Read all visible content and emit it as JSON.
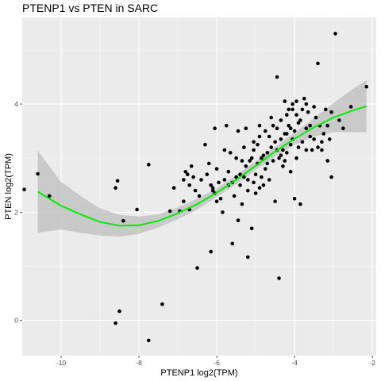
{
  "chart_data": {
    "type": "scatter",
    "title": "PTENP1 vs  PTEN in SARC",
    "xlabel": "PTENP1 log2(TPM)",
    "ylabel": "PTEN log2(TPM)",
    "xlim": [
      -11.0,
      -1.9
    ],
    "ylim": [
      -0.65,
      5.6
    ],
    "xticks": [
      -10,
      -8,
      -6,
      -4,
      -2
    ],
    "yticks": [
      0,
      2,
      4
    ],
    "grid": true,
    "background": "#ebebeb",
    "point_color": "#000000",
    "fit_color": "#00ee00",
    "band_color": "#bebebe",
    "points": [
      [
        -10.95,
        2.42
      ],
      [
        -10.6,
        2.71
      ],
      [
        -10.3,
        2.3
      ],
      [
        -8.6,
        2.45
      ],
      [
        -8.55,
        2.58
      ],
      [
        -8.4,
        1.84
      ],
      [
        -8.05,
        2.05
      ],
      [
        -7.75,
        2.88
      ],
      [
        -8.6,
        -0.05
      ],
      [
        -8.5,
        0.17
      ],
      [
        -7.75,
        -0.37
      ],
      [
        -7.4,
        0.3
      ],
      [
        -7.2,
        2.02
      ],
      [
        -7.1,
        2.45
      ],
      [
        -6.95,
        2.02
      ],
      [
        -6.85,
        2.6
      ],
      [
        -6.8,
        2.75
      ],
      [
        -6.75,
        2.7
      ],
      [
        -6.7,
        2.5
      ],
      [
        -6.65,
        2.85
      ],
      [
        -6.6,
        2.65
      ],
      [
        -6.5,
        0.97
      ],
      [
        -6.45,
        2.3
      ],
      [
        -6.3,
        3.25
      ],
      [
        -6.2,
        2.9
      ],
      [
        -6.15,
        2.5
      ],
      [
        -6.1,
        2.45
      ],
      [
        -6.1,
        2.4
      ],
      [
        -6.05,
        3.55
      ],
      [
        -6.0,
        2.8
      ],
      [
        -6.05,
        2.35
      ],
      [
        -5.9,
        2.25
      ],
      [
        -5.85,
        2.0
      ],
      [
        -5.8,
        3.15
      ],
      [
        -5.75,
        3.6
      ],
      [
        -5.7,
        2.5
      ],
      [
        -5.6,
        2.55
      ],
      [
        -5.55,
        2.3
      ],
      [
        -5.5,
        2.65
      ],
      [
        -5.45,
        3.5
      ],
      [
        -5.4,
        2.7
      ],
      [
        -5.35,
        2.95
      ],
      [
        -5.3,
        3.2
      ],
      [
        -5.25,
        2.85
      ],
      [
        -5.2,
        2.6
      ],
      [
        -5.2,
        2.4
      ],
      [
        -5.1,
        3.0
      ],
      [
        -5.05,
        2.55
      ],
      [
        -5.0,
        2.7
      ],
      [
        -4.95,
        3.25
      ],
      [
        -4.9,
        3.4
      ],
      [
        -4.85,
        3.0
      ],
      [
        -4.8,
        2.5
      ],
      [
        -4.75,
        2.8
      ],
      [
        -4.7,
        3.1
      ],
      [
        -4.65,
        3.4
      ],
      [
        -4.6,
        3.2
      ],
      [
        -4.55,
        2.95
      ],
      [
        -4.5,
        3.3
      ],
      [
        -4.45,
        3.55
      ],
      [
        -4.4,
        3.0
      ],
      [
        -4.35,
        3.7
      ],
      [
        -4.3,
        3.15
      ],
      [
        -4.25,
        3.45
      ],
      [
        -4.2,
        3.8
      ],
      [
        -4.15,
        3.6
      ],
      [
        -4.1,
        3.25
      ],
      [
        -4.05,
        3.9
      ],
      [
        -4.0,
        3.5
      ],
      [
        -3.95,
        4.05
      ],
      [
        -3.9,
        3.2
      ],
      [
        -3.85,
        3.7
      ],
      [
        -3.8,
        3.9
      ],
      [
        -3.75,
        4.1
      ],
      [
        -3.7,
        3.55
      ],
      [
        -3.65,
        3.85
      ],
      [
        -3.6,
        3.6
      ],
      [
        -3.55,
        3.15
      ],
      [
        -3.5,
        3.35
      ],
      [
        -3.45,
        3.75
      ],
      [
        -3.4,
        4.75
      ],
      [
        -3.35,
        3.6
      ],
      [
        -3.3,
        3.3
      ],
      [
        -3.25,
        3.45
      ],
      [
        -3.2,
        3.9
      ],
      [
        -3.15,
        2.95
      ],
      [
        -3.1,
        3.35
      ],
      [
        -3.05,
        2.65
      ],
      [
        -2.95,
        5.3
      ],
      [
        -2.85,
        3.7
      ],
      [
        -2.55,
        3.95
      ],
      [
        -2.15,
        4.32
      ],
      [
        -4.45,
        4.5
      ],
      [
        -5.6,
        1.42
      ],
      [
        -5.45,
        1.85
      ],
      [
        -5.2,
        1.17
      ],
      [
        -5.1,
        1.7
      ],
      [
        -4.5,
        2.2
      ],
      [
        -4.4,
        0.78
      ],
      [
        -4.0,
        2.25
      ],
      [
        -3.85,
        2.15
      ],
      [
        -6.15,
        1.27
      ],
      [
        -4.9,
        2.45
      ],
      [
        -4.8,
        3.05
      ],
      [
        -4.65,
        2.6
      ],
      [
        -4.3,
        2.85
      ],
      [
        -4.2,
        3.1
      ],
      [
        -4.1,
        2.75
      ],
      [
        -5.8,
        2.6
      ],
      [
        -5.65,
        3.1
      ],
      [
        -5.35,
        2.15
      ],
      [
        -5.25,
        3.55
      ],
      [
        -5.15,
        2.95
      ],
      [
        -5.05,
        3.3
      ],
      [
        -4.95,
        2.9
      ],
      [
        -4.75,
        3.5
      ],
      [
        -4.55,
        3.6
      ],
      [
        -4.35,
        3.35
      ],
      [
        -4.25,
        2.95
      ],
      [
        -4.15,
        3.9
      ],
      [
        -4.05,
        3.35
      ],
      [
        -3.95,
        3.0
      ],
      [
        -3.7,
        4.0
      ],
      [
        -3.6,
        3.4
      ],
      [
        -3.5,
        3.95
      ],
      [
        -3.3,
        3.15
      ],
      [
        -6.4,
        2.6
      ],
      [
        -6.55,
        2.4
      ],
      [
        -6.25,
        2.7
      ],
      [
        -5.95,
        2.55
      ],
      [
        -5.5,
        3.0
      ],
      [
        -5.4,
        2.5
      ],
      [
        -4.85,
        2.65
      ],
      [
        -4.7,
        2.9
      ],
      [
        -4.6,
        3.75
      ],
      [
        -4.45,
        3.15
      ],
      [
        -4.35,
        3.05
      ],
      [
        -4.2,
        3.45
      ],
      [
        -3.9,
        3.65
      ],
      [
        -3.8,
        3.3
      ],
      [
        -3.4,
        3.2
      ],
      [
        -5.0,
        2.35
      ],
      [
        -5.3,
        2.65
      ],
      [
        -5.7,
        2.75
      ],
      [
        -6.0,
        2.2
      ],
      [
        -6.7,
        2.05
      ],
      [
        -6.85,
        2.2
      ],
      [
        -5.05,
        3.15
      ],
      [
        -4.9,
        3.6
      ],
      [
        -4.1,
        3.55
      ],
      [
        -3.95,
        3.8
      ],
      [
        -4.25,
        4.05
      ],
      [
        -4.05,
        4.0
      ],
      [
        -3.7,
        3.15
      ],
      [
        -3.15,
        3.6
      ],
      [
        -2.75,
        3.55
      ],
      [
        -3.05,
        3.85
      ]
    ],
    "fit_curve": {
      "x": [
        -10.6,
        -10.0,
        -9.5,
        -9.0,
        -8.5,
        -8.0,
        -7.5,
        -7.0,
        -6.5,
        -6.0,
        -5.5,
        -5.0,
        -4.5,
        -4.0,
        -3.5,
        -3.0,
        -2.5,
        -2.15
      ],
      "y": [
        2.38,
        2.12,
        1.96,
        1.82,
        1.75,
        1.76,
        1.84,
        1.98,
        2.15,
        2.36,
        2.6,
        2.86,
        3.12,
        3.36,
        3.57,
        3.75,
        3.88,
        3.96
      ],
      "lower": [
        1.62,
        1.68,
        1.62,
        1.57,
        1.55,
        1.6,
        1.72,
        1.87,
        2.05,
        2.28,
        2.52,
        2.78,
        3.03,
        3.25,
        3.4,
        3.48,
        3.48,
        3.48
      ],
      "upper": [
        3.14,
        2.56,
        2.3,
        2.07,
        1.95,
        1.92,
        1.96,
        2.09,
        2.25,
        2.44,
        2.68,
        2.94,
        3.21,
        3.47,
        3.74,
        4.02,
        4.28,
        4.44
      ]
    }
  }
}
